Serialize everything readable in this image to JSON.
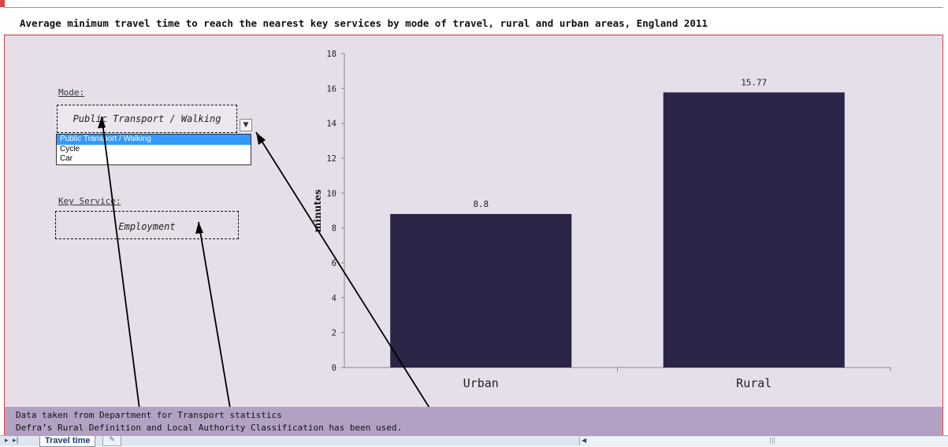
{
  "title": "Average minimum travel time to reach the nearest key services by mode of travel, rural and urban areas, England 2011",
  "mode": {
    "label": "Mode:",
    "selected": "Public Transport / Walking",
    "options": [
      "Public Transport / Walking",
      "Cycle",
      "Car"
    ]
  },
  "key_service": {
    "label": "Key Service:",
    "selected": "Employment"
  },
  "chart_data": {
    "type": "bar",
    "categories": [
      "Urban",
      "Rural"
    ],
    "values": [
      8.8,
      15.77
    ],
    "data_labels": [
      "8.8",
      "15.77"
    ],
    "ylabel": "minutes",
    "ylim": [
      0,
      18
    ],
    "yticks": [
      "0",
      "2",
      "4",
      "6",
      "8",
      "10",
      "12",
      "14",
      "16",
      "18"
    ],
    "bar_color": "#2a2446",
    "grid": false
  },
  "footer": {
    "line1": "Data taken from Department for Transport statistics",
    "line2": "Defra’s Rural Definition and Local Authority Classification has been used."
  },
  "tabbar": {
    "sheet_tab": "Travel time"
  },
  "colors": {
    "sheet_bg": "#e6dfea",
    "footer_bg": "#b3a1c4",
    "dropdown_highlight": "#3399ff"
  }
}
